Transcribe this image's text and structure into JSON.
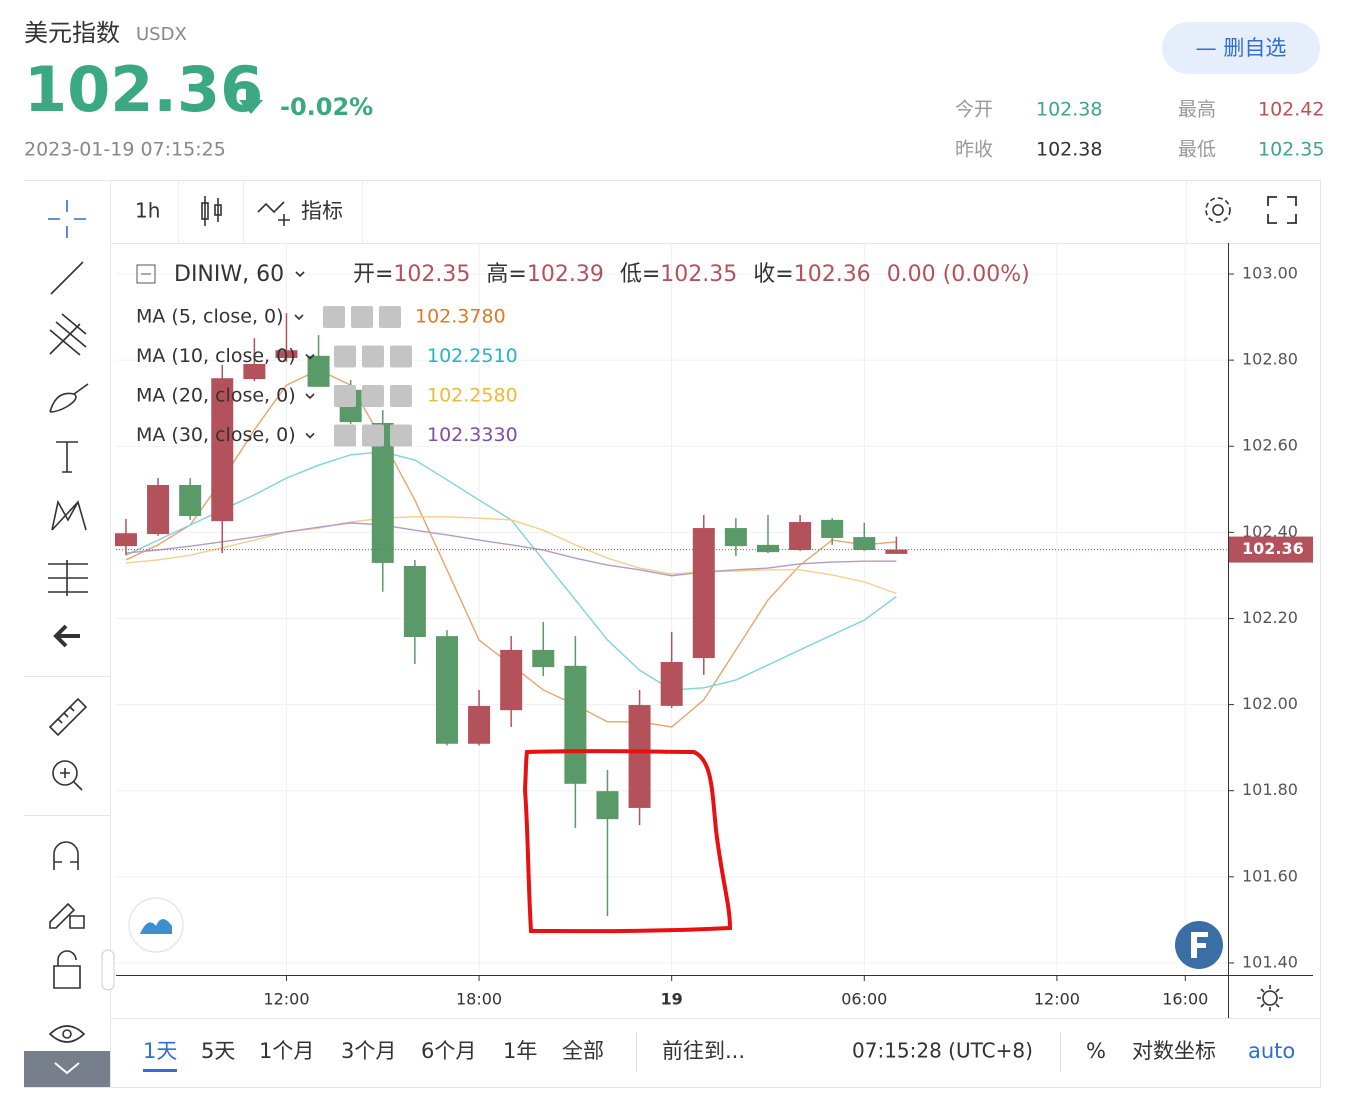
{
  "header": {
    "title": "美元指数",
    "code": "USDX",
    "price": "102.36",
    "change": "-0.02%",
    "time": "2023-01-19 07:15:25",
    "button": "— 删自选",
    "stats": [
      {
        "label": "今开",
        "value": "102.38",
        "color": "#3aa982"
      },
      {
        "label": "最高",
        "value": "102.42",
        "color": "#c0504d"
      },
      {
        "label": "昨收",
        "value": "102.38",
        "color": "#333333"
      },
      {
        "label": "最低",
        "value": "102.35",
        "color": "#3aa982"
      }
    ]
  },
  "toolbar": {
    "interval": "1h",
    "indicators": "指标"
  },
  "chart_data": {
    "type": "candlestick",
    "symbol": "DINIW, 60",
    "ohlc_legend": [
      {
        "label": "开=",
        "value": "102.35"
      },
      {
        "label": "高=",
        "value": "102.39"
      },
      {
        "label": "低=",
        "value": "102.35"
      },
      {
        "label": "收=",
        "value": "102.36"
      }
    ],
    "change_text": "0.00 (0.00%)",
    "up_color": "#b4525b",
    "down_color": "#5a9a68",
    "open": [
      102.368,
      102.396,
      102.51,
      102.426,
      102.756,
      102.805,
      102.81,
      102.731,
      102.654,
      102.322,
      102.159,
      101.909,
      101.987,
      102.127,
      102.09,
      101.799,
      101.76,
      101.997,
      102.108,
      102.41,
      102.371,
      102.359,
      102.429,
      102.389,
      102.35
    ],
    "high": [
      102.431,
      102.526,
      102.526,
      102.789,
      102.851,
      102.909,
      102.858,
      102.754,
      102.684,
      102.336,
      102.173,
      102.034,
      102.159,
      102.192,
      102.159,
      101.848,
      102.034,
      102.169,
      102.44,
      102.433,
      102.44,
      102.44,
      102.433,
      102.422,
      102.39
    ],
    "low": [
      102.347,
      102.392,
      102.429,
      102.352,
      102.751,
      102.796,
      102.738,
      102.652,
      102.262,
      102.094,
      101.905,
      101.905,
      101.948,
      102.066,
      101.713,
      101.509,
      101.72,
      101.992,
      102.069,
      102.345,
      102.352,
      102.357,
      102.371,
      102.357,
      102.35
    ],
    "close": [
      102.398,
      102.51,
      102.438,
      102.758,
      102.791,
      102.823,
      102.738,
      102.656,
      102.329,
      102.157,
      101.909,
      101.997,
      102.127,
      102.087,
      101.816,
      101.734,
      101.999,
      102.099,
      102.41,
      102.368,
      102.354,
      102.424,
      102.387,
      102.359,
      102.36
    ],
    "series": [
      {
        "name": "MA (5, close, 0)",
        "color": "#e8a46e",
        "last_label": "102.3780",
        "values": [
          102.336,
          102.371,
          102.417,
          102.522,
          102.638,
          102.742,
          102.777,
          102.742,
          102.614,
          102.475,
          102.313,
          102.15,
          102.092,
          102.034,
          101.999,
          101.96,
          101.96,
          101.948,
          102.011,
          102.127,
          102.243,
          102.324,
          102.382,
          102.371,
          102.378
        ]
      },
      {
        "name": "MA (10, close, 0)",
        "color": "#7fd3dc",
        "last_label": "102.2510",
        "values": [
          102.347,
          102.382,
          102.417,
          102.452,
          102.487,
          102.526,
          102.556,
          102.58,
          102.587,
          102.568,
          102.522,
          102.475,
          102.429,
          102.336,
          102.243,
          102.15,
          102.08,
          102.034,
          102.039,
          102.057,
          102.092,
          102.127,
          102.162,
          102.196,
          102.251
        ]
      },
      {
        "name": "MA (20, close, 0)",
        "color": "#f3cf8c",
        "last_label": "102.2580",
        "values": [
          102.329,
          102.336,
          102.347,
          102.364,
          102.382,
          102.401,
          102.41,
          102.424,
          102.433,
          102.436,
          102.436,
          102.433,
          102.429,
          102.405,
          102.371,
          102.34,
          102.317,
          102.303,
          102.308,
          102.31,
          102.313,
          102.313,
          102.301,
          102.285,
          102.258
        ]
      },
      {
        "name": "MA (30, close, 0)",
        "color": "#b39bc8",
        "last_label": "102.3330",
        "values": [
          102.352,
          102.359,
          102.368,
          102.378,
          102.389,
          102.401,
          102.412,
          102.422,
          102.417,
          102.405,
          102.394,
          102.382,
          102.371,
          102.359,
          102.34,
          102.324,
          102.313,
          102.299,
          102.308,
          102.313,
          102.317,
          102.327,
          102.331,
          102.333,
          102.333
        ]
      }
    ],
    "last_price": 102.36,
    "xlim": [
      -0.31,
      34.33
    ],
    "xticks": [
      {
        "value": 5,
        "label": "12:00"
      },
      {
        "value": 11,
        "label": "18:00"
      },
      {
        "value": 17,
        "label": "19"
      },
      {
        "value": 23,
        "label": "06:00"
      },
      {
        "value": 29,
        "label": "12:00"
      },
      {
        "value": 33,
        "label": "16:00"
      }
    ],
    "ylim": [
      101.372,
      103.072
    ],
    "yticks": [
      {
        "value": 101.4,
        "label": "101.40"
      },
      {
        "value": 101.6,
        "label": "101.60"
      },
      {
        "value": 101.8,
        "label": "101.80"
      },
      {
        "value": 102.0,
        "label": "102.00"
      },
      {
        "value": 102.2,
        "label": "102.20"
      },
      {
        "value": 102.4,
        "label": "102.40"
      },
      {
        "value": 102.6,
        "label": "102.60"
      },
      {
        "value": 102.8,
        "label": "102.80"
      },
      {
        "value": 103.0,
        "label": "103.00"
      }
    ],
    "grid": true
  },
  "range_bar": {
    "buttons": [
      "1天",
      "5天",
      "1个月",
      "3个月",
      "6个月",
      "1年",
      "全部"
    ],
    "goto": "前往到...",
    "clock": "07:15:28 (UTC+8)",
    "percent": "%",
    "log": "对数坐标",
    "auto": "auto"
  }
}
